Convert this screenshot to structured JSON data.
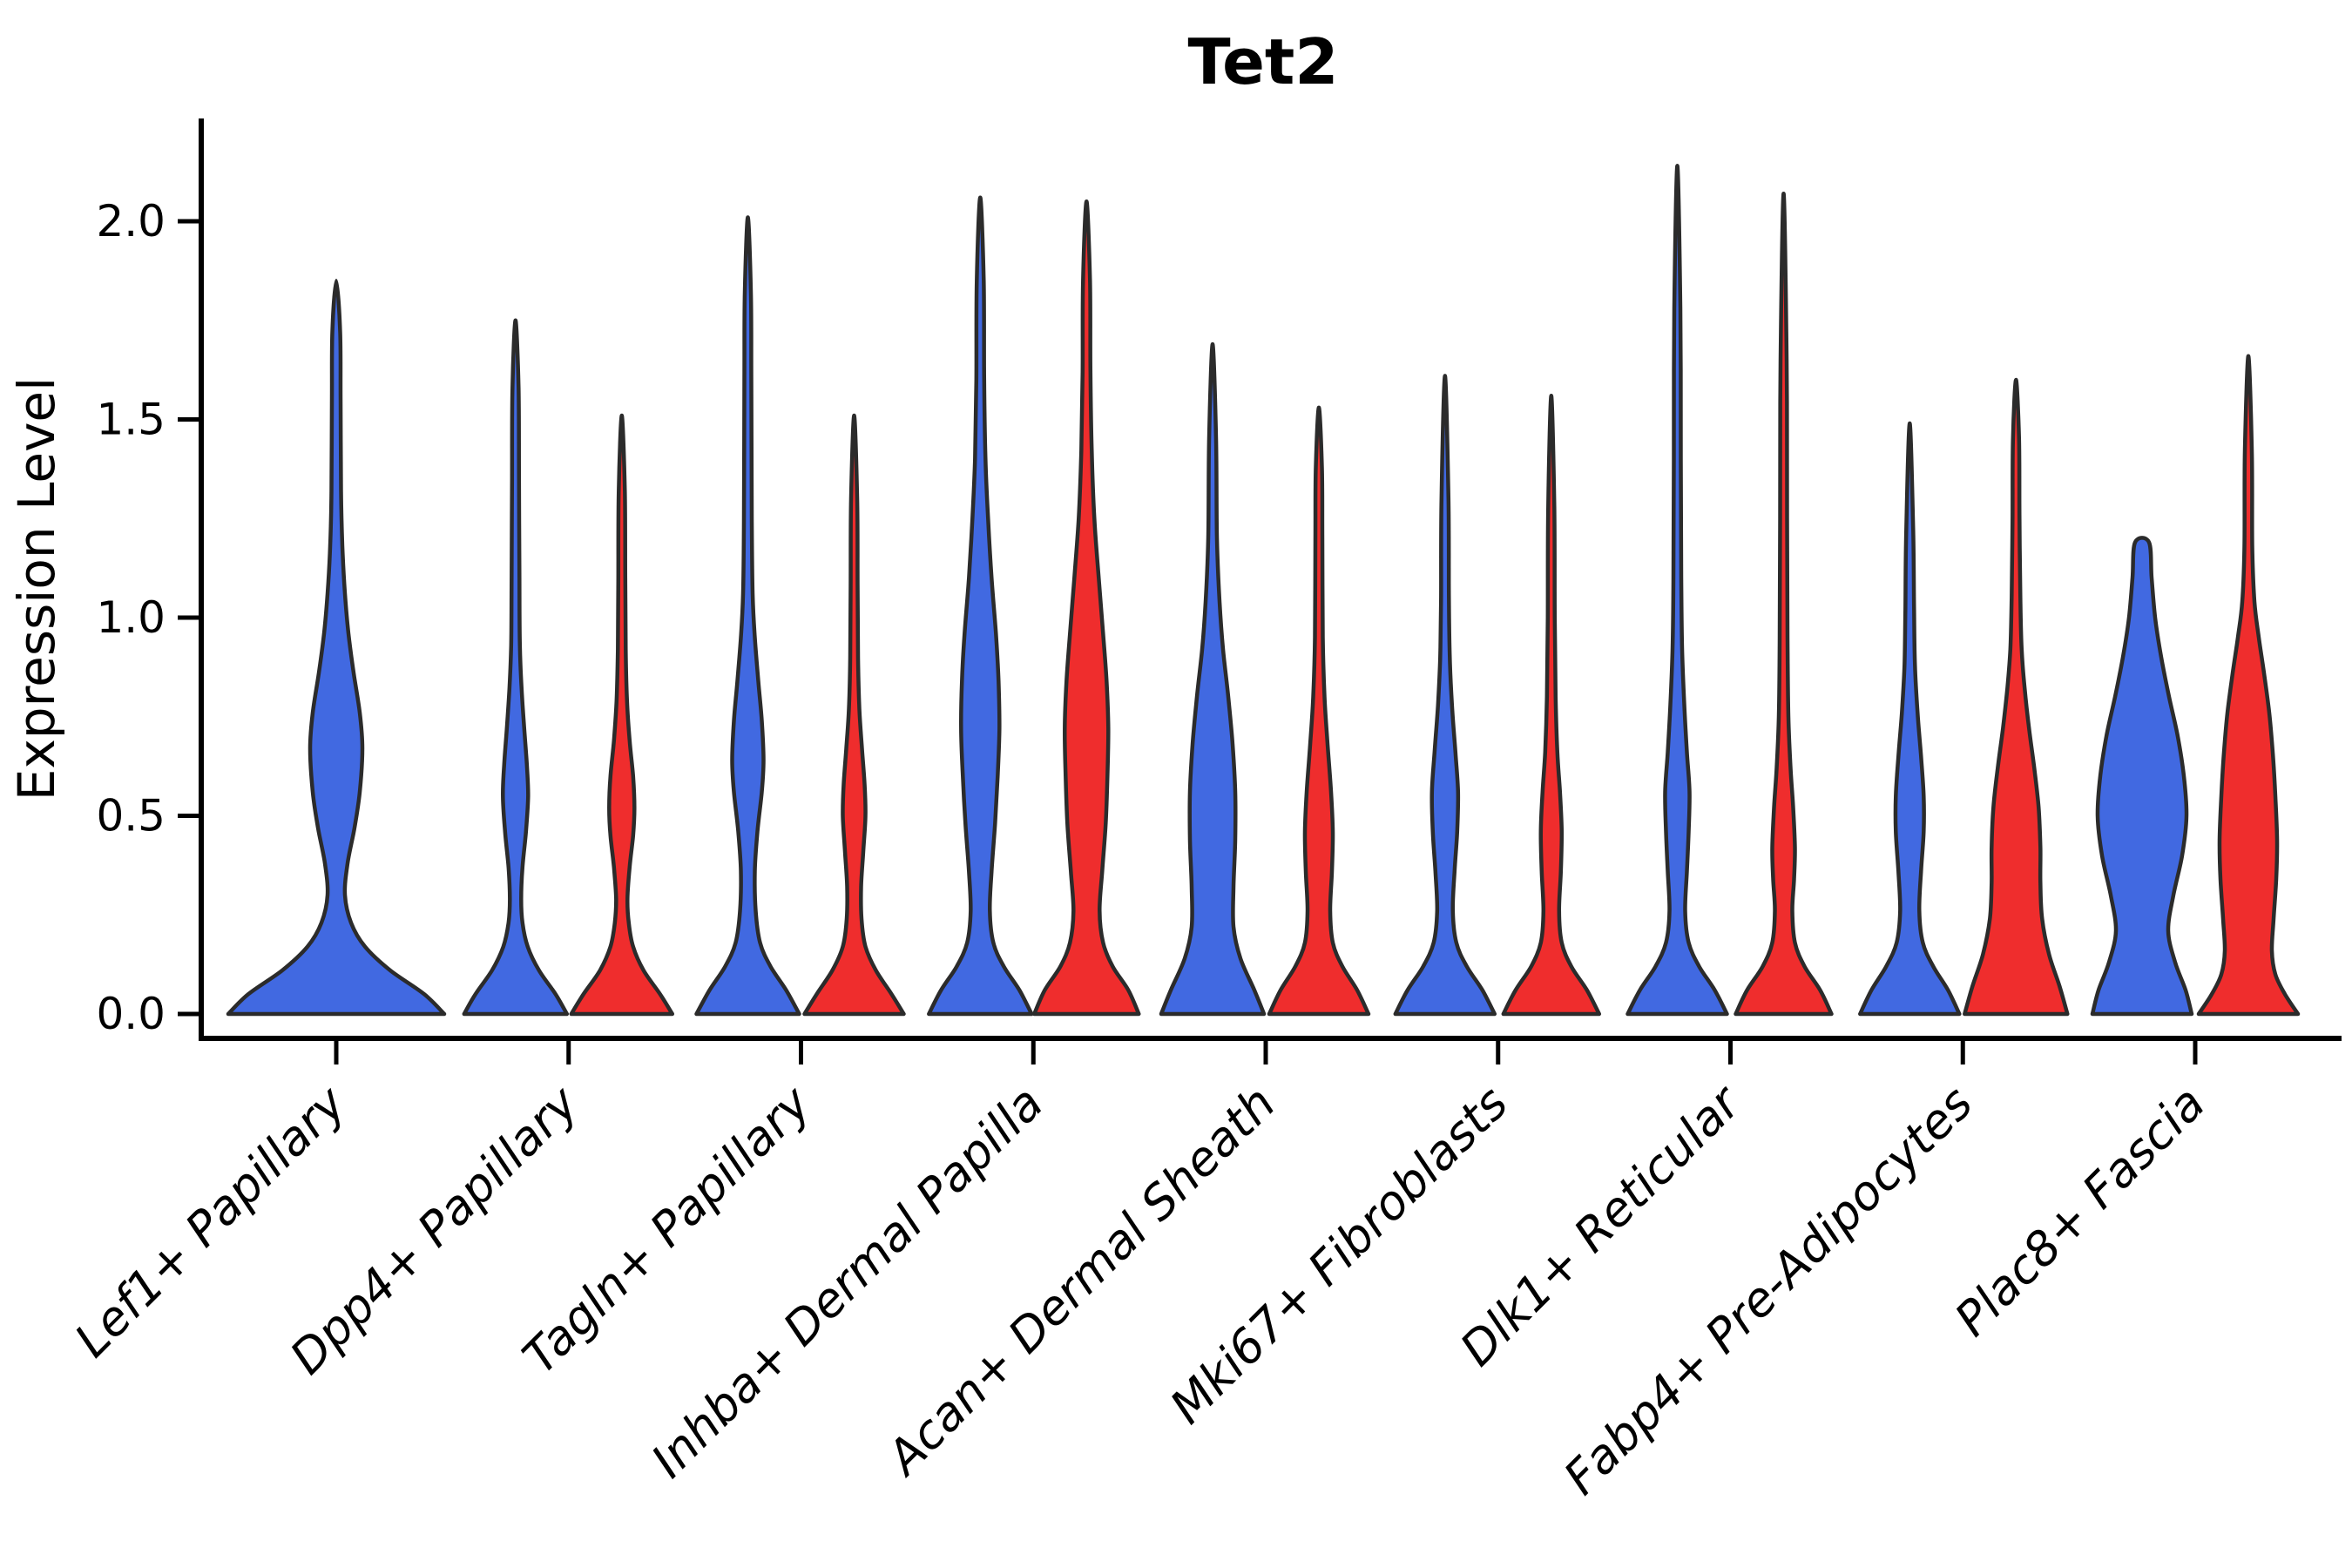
{
  "chart_data": {
    "type": "violin",
    "title": "Tet2",
    "ylabel": "Expression Level",
    "xlabel": "",
    "ylim": [
      0,
      2.25
    ],
    "grid": false,
    "legend": null,
    "yticks": [
      0.0,
      0.5,
      1.0,
      1.5,
      2.0
    ],
    "ytick_labels": [
      "0.0",
      "0.5",
      "1.0",
      "1.5",
      "2.0"
    ],
    "categories": [
      "Lef1+ Papillary",
      "Dpp4+ Papillary",
      "Tagln+ Papillary",
      "Inhba+ Dermal Papilla",
      "Acan+ Dermal Sheath",
      "Mki67+ Fibroblasts",
      "Dlk1+ Reticular",
      "Fabp4+ Pre-Adipocytes",
      "Plac8+ Fascia"
    ],
    "splits": [
      "blue",
      "red"
    ],
    "colors": {
      "blue": "#4169E1",
      "red": "#EF2D2D"
    },
    "outline_color": "#2B2B2B",
    "violins": [
      {
        "category_index": 0,
        "side": "center",
        "color_key": "blue",
        "max_value": 1.85,
        "profile": [
          [
            0,
            124
          ],
          [
            0.05,
            101
          ],
          [
            0.11,
            62
          ],
          [
            0.17,
            33
          ],
          [
            0.23,
            17
          ],
          [
            0.3,
            10
          ],
          [
            0.38,
            13
          ],
          [
            0.47,
            21
          ],
          [
            0.56,
            27
          ],
          [
            0.67,
            30
          ],
          [
            0.76,
            27
          ],
          [
            0.86,
            20
          ],
          [
            0.96,
            14
          ],
          [
            1.06,
            10
          ],
          [
            1.18,
            7
          ],
          [
            1.32,
            5.5
          ],
          [
            1.55,
            5
          ],
          [
            1.72,
            4.5
          ],
          [
            1.85,
            0
          ]
        ]
      },
      {
        "category_index": 1,
        "side": "left",
        "color_key": "blue",
        "max_value": 1.75,
        "profile": [
          [
            0,
            59
          ],
          [
            0.05,
            46
          ],
          [
            0.11,
            27
          ],
          [
            0.17,
            14
          ],
          [
            0.23,
            8
          ],
          [
            0.29,
            6.5
          ],
          [
            0.37,
            8
          ],
          [
            0.46,
            12
          ],
          [
            0.55,
            14.5
          ],
          [
            0.63,
            13
          ],
          [
            0.72,
            10
          ],
          [
            0.82,
            7
          ],
          [
            0.93,
            5
          ],
          [
            1.1,
            4.5
          ],
          [
            1.35,
            4
          ],
          [
            1.58,
            3.5
          ],
          [
            1.75,
            0
          ]
        ]
      },
      {
        "category_index": 1,
        "side": "right",
        "color_key": "red",
        "max_value": 1.51,
        "profile": [
          [
            0,
            58
          ],
          [
            0.05,
            44
          ],
          [
            0.11,
            25
          ],
          [
            0.17,
            13
          ],
          [
            0.23,
            8
          ],
          [
            0.29,
            6.5
          ],
          [
            0.37,
            9
          ],
          [
            0.45,
            13
          ],
          [
            0.52,
            14.5
          ],
          [
            0.6,
            13
          ],
          [
            0.69,
            9
          ],
          [
            0.79,
            6
          ],
          [
            0.92,
            4.5
          ],
          [
            1.1,
            4
          ],
          [
            1.32,
            3.5
          ],
          [
            1.51,
            0
          ]
        ]
      },
      {
        "category_index": 2,
        "side": "left",
        "color_key": "blue",
        "max_value": 2.01,
        "profile": [
          [
            0,
            59
          ],
          [
            0.06,
            44
          ],
          [
            0.12,
            26
          ],
          [
            0.18,
            14
          ],
          [
            0.26,
            9
          ],
          [
            0.36,
            8
          ],
          [
            0.46,
            11
          ],
          [
            0.56,
            16
          ],
          [
            0.64,
            18
          ],
          [
            0.74,
            16
          ],
          [
            0.84,
            12
          ],
          [
            0.95,
            8
          ],
          [
            1.06,
            5.5
          ],
          [
            1.25,
            4.5
          ],
          [
            1.6,
            4
          ],
          [
            1.82,
            3.5
          ],
          [
            2.01,
            0
          ]
        ]
      },
      {
        "category_index": 2,
        "side": "right",
        "color_key": "red",
        "max_value": 1.51,
        "profile": [
          [
            0,
            57
          ],
          [
            0.05,
            43
          ],
          [
            0.11,
            25
          ],
          [
            0.17,
            13
          ],
          [
            0.24,
            8.5
          ],
          [
            0.32,
            8
          ],
          [
            0.41,
            10.5
          ],
          [
            0.5,
            13
          ],
          [
            0.58,
            12
          ],
          [
            0.67,
            9
          ],
          [
            0.77,
            6
          ],
          [
            0.9,
            4.5
          ],
          [
            1.08,
            4
          ],
          [
            1.3,
            3.5
          ],
          [
            1.51,
            0
          ]
        ]
      },
      {
        "category_index": 3,
        "side": "left",
        "color_key": "blue",
        "max_value": 2.06,
        "profile": [
          [
            0,
            59
          ],
          [
            0.06,
            45
          ],
          [
            0.12,
            27
          ],
          [
            0.18,
            15
          ],
          [
            0.26,
            11
          ],
          [
            0.36,
            13
          ],
          [
            0.48,
            17
          ],
          [
            0.6,
            20
          ],
          [
            0.72,
            22
          ],
          [
            0.84,
            21
          ],
          [
            0.96,
            18
          ],
          [
            1.1,
            13
          ],
          [
            1.25,
            9
          ],
          [
            1.4,
            6
          ],
          [
            1.6,
            4.5
          ],
          [
            1.85,
            4
          ],
          [
            2.06,
            0
          ]
        ]
      },
      {
        "category_index": 3,
        "side": "right",
        "color_key": "red",
        "max_value": 2.05,
        "profile": [
          [
            0,
            60
          ],
          [
            0.06,
            48
          ],
          [
            0.12,
            30
          ],
          [
            0.18,
            19
          ],
          [
            0.26,
            15
          ],
          [
            0.36,
            18
          ],
          [
            0.48,
            22
          ],
          [
            0.6,
            24
          ],
          [
            0.72,
            25
          ],
          [
            0.84,
            23
          ],
          [
            0.96,
            19
          ],
          [
            1.1,
            14
          ],
          [
            1.25,
            9
          ],
          [
            1.42,
            6
          ],
          [
            1.62,
            4.5
          ],
          [
            1.85,
            4
          ],
          [
            2.05,
            0
          ]
        ]
      },
      {
        "category_index": 4,
        "side": "left",
        "color_key": "blue",
        "max_value": 1.69,
        "profile": [
          [
            0,
            59
          ],
          [
            0.06,
            48
          ],
          [
            0.14,
            32
          ],
          [
            0.22,
            24
          ],
          [
            0.32,
            24
          ],
          [
            0.44,
            26
          ],
          [
            0.56,
            26
          ],
          [
            0.68,
            23
          ],
          [
            0.8,
            18
          ],
          [
            0.92,
            12
          ],
          [
            1.04,
            8
          ],
          [
            1.2,
            5
          ],
          [
            1.45,
            4
          ],
          [
            1.69,
            0
          ]
        ]
      },
      {
        "category_index": 4,
        "side": "right",
        "color_key": "red",
        "max_value": 1.53,
        "profile": [
          [
            0,
            57
          ],
          [
            0.06,
            44
          ],
          [
            0.12,
            27
          ],
          [
            0.18,
            16
          ],
          [
            0.26,
            13
          ],
          [
            0.36,
            15
          ],
          [
            0.46,
            16
          ],
          [
            0.56,
            14
          ],
          [
            0.68,
            10
          ],
          [
            0.8,
            6.5
          ],
          [
            0.95,
            4.5
          ],
          [
            1.2,
            4
          ],
          [
            1.38,
            3.5
          ],
          [
            1.53,
            0
          ]
        ]
      },
      {
        "category_index": 5,
        "side": "left",
        "color_key": "blue",
        "max_value": 1.61,
        "profile": [
          [
            0,
            57
          ],
          [
            0.06,
            43
          ],
          [
            0.12,
            25
          ],
          [
            0.18,
            13
          ],
          [
            0.26,
            9
          ],
          [
            0.36,
            11
          ],
          [
            0.46,
            14
          ],
          [
            0.56,
            15
          ],
          [
            0.66,
            12
          ],
          [
            0.78,
            8
          ],
          [
            0.9,
            5.5
          ],
          [
            1.05,
            4.5
          ],
          [
            1.3,
            4
          ],
          [
            1.61,
            0
          ]
        ]
      },
      {
        "category_index": 5,
        "side": "right",
        "color_key": "red",
        "max_value": 1.56,
        "profile": [
          [
            0,
            55
          ],
          [
            0.06,
            41
          ],
          [
            0.12,
            23
          ],
          [
            0.18,
            12
          ],
          [
            0.26,
            9
          ],
          [
            0.36,
            11
          ],
          [
            0.46,
            12
          ],
          [
            0.56,
            10
          ],
          [
            0.66,
            7
          ],
          [
            0.8,
            5
          ],
          [
            1.0,
            4
          ],
          [
            1.28,
            3.5
          ],
          [
            1.56,
            0
          ]
        ]
      },
      {
        "category_index": 6,
        "side": "left",
        "color_key": "blue",
        "max_value": 2.14,
        "profile": [
          [
            0,
            57
          ],
          [
            0.06,
            43
          ],
          [
            0.12,
            25
          ],
          [
            0.18,
            13
          ],
          [
            0.26,
            9
          ],
          [
            0.36,
            11
          ],
          [
            0.46,
            13
          ],
          [
            0.56,
            14
          ],
          [
            0.66,
            11
          ],
          [
            0.78,
            8
          ],
          [
            0.92,
            5.5
          ],
          [
            1.1,
            4.5
          ],
          [
            1.4,
            4
          ],
          [
            1.78,
            3.5
          ],
          [
            2.14,
            0
          ]
        ]
      },
      {
        "category_index": 6,
        "side": "right",
        "color_key": "red",
        "max_value": 2.07,
        "profile": [
          [
            0,
            55
          ],
          [
            0.06,
            42
          ],
          [
            0.12,
            24
          ],
          [
            0.18,
            13
          ],
          [
            0.26,
            10
          ],
          [
            0.34,
            12
          ],
          [
            0.42,
            13
          ],
          [
            0.52,
            11
          ],
          [
            0.62,
            8
          ],
          [
            0.75,
            5.5
          ],
          [
            0.95,
            4.5
          ],
          [
            1.25,
            4
          ],
          [
            1.65,
            3.5
          ],
          [
            2.07,
            0
          ]
        ]
      },
      {
        "category_index": 7,
        "side": "left",
        "color_key": "blue",
        "max_value": 1.49,
        "profile": [
          [
            0,
            57
          ],
          [
            0.06,
            44
          ],
          [
            0.12,
            27
          ],
          [
            0.18,
            15
          ],
          [
            0.26,
            11
          ],
          [
            0.36,
            13
          ],
          [
            0.46,
            16
          ],
          [
            0.55,
            16
          ],
          [
            0.65,
            13
          ],
          [
            0.76,
            9
          ],
          [
            0.88,
            6
          ],
          [
            1.02,
            5
          ],
          [
            1.22,
            4
          ],
          [
            1.49,
            0
          ]
        ]
      },
      {
        "category_index": 7,
        "side": "right",
        "color_key": "red",
        "max_value": 1.6,
        "profile": [
          [
            0,
            59
          ],
          [
            0.07,
            50
          ],
          [
            0.15,
            38
          ],
          [
            0.24,
            30
          ],
          [
            0.33,
            28
          ],
          [
            0.42,
            28
          ],
          [
            0.52,
            26
          ],
          [
            0.62,
            21
          ],
          [
            0.72,
            15
          ],
          [
            0.82,
            10
          ],
          [
            0.92,
            6.5
          ],
          [
            1.05,
            5
          ],
          [
            1.25,
            4
          ],
          [
            1.45,
            3.5
          ],
          [
            1.6,
            0
          ]
        ]
      },
      {
        "category_index": 8,
        "side": "left",
        "color_key": "blue",
        "max_value": 1.19,
        "profile": [
          [
            0,
            57
          ],
          [
            0.06,
            50
          ],
          [
            0.13,
            38
          ],
          [
            0.21,
            30
          ],
          [
            0.3,
            36
          ],
          [
            0.4,
            46
          ],
          [
            0.5,
            51
          ],
          [
            0.6,
            48
          ],
          [
            0.7,
            41
          ],
          [
            0.8,
            31
          ],
          [
            0.9,
            22
          ],
          [
            1.0,
            15
          ],
          [
            1.1,
            11
          ],
          [
            1.19,
            8
          ]
        ]
      },
      {
        "category_index": 8,
        "side": "right",
        "color_key": "red",
        "max_value": 1.66,
        "profile": [
          [
            0,
            57
          ],
          [
            0.05,
            42
          ],
          [
            0.1,
            31
          ],
          [
            0.16,
            27
          ],
          [
            0.24,
            29
          ],
          [
            0.34,
            32
          ],
          [
            0.44,
            33
          ],
          [
            0.55,
            31
          ],
          [
            0.66,
            28
          ],
          [
            0.76,
            24
          ],
          [
            0.86,
            18
          ],
          [
            0.95,
            12
          ],
          [
            1.04,
            7
          ],
          [
            1.18,
            4.5
          ],
          [
            1.42,
            4
          ],
          [
            1.66,
            0
          ]
        ]
      }
    ]
  }
}
